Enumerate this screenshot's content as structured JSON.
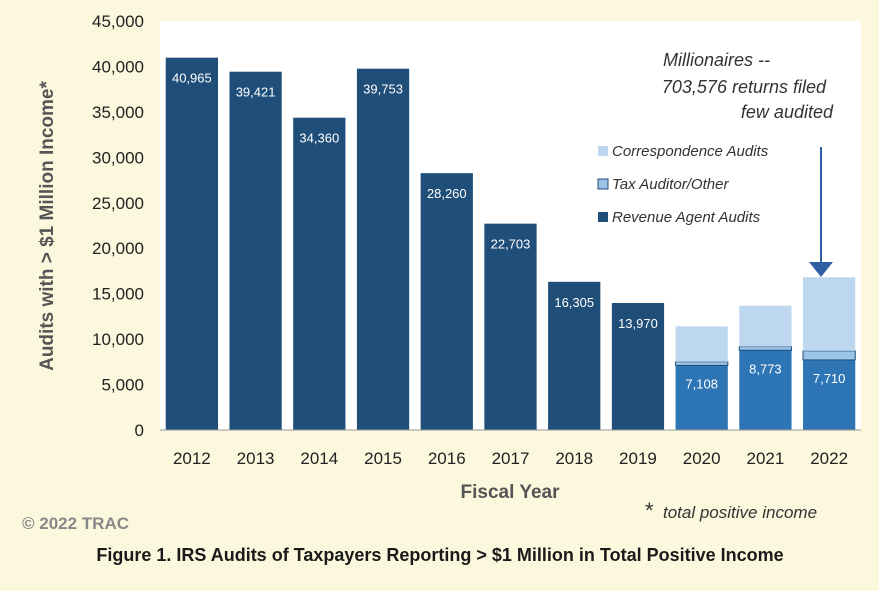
{
  "chart_data": {
    "type": "bar",
    "stacked": true,
    "categories": [
      "2012",
      "2013",
      "2014",
      "2015",
      "2016",
      "2017",
      "2018",
      "2019",
      "2020",
      "2021",
      "2022"
    ],
    "series": [
      {
        "name": "Revenue Agent Audits",
        "color": "#1f4e79",
        "color_alt": "#2e75b6",
        "values": [
          40965,
          39421,
          34360,
          39753,
          28260,
          22703,
          16305,
          13970,
          7108,
          8773,
          7710
        ]
      },
      {
        "name": "Tax Auditor/Other",
        "color": "#9dc3e6",
        "values": [
          0,
          0,
          0,
          0,
          0,
          0,
          0,
          0,
          400,
          400,
          1000
        ]
      },
      {
        "name": "Correspondence Audits",
        "color": "#bdd7ee",
        "values": [
          0,
          0,
          0,
          0,
          0,
          0,
          0,
          0,
          3900,
          4500,
          8100
        ]
      }
    ],
    "data_labels": [
      "40,965",
      "39,421",
      "34,360",
      "39,753",
      "28,260",
      "22,703",
      "16,305",
      "13,970",
      "7,108",
      "8,773",
      "7,710"
    ],
    "ylim": [
      0,
      45000
    ],
    "yticks": [
      0,
      5000,
      10000,
      15000,
      20000,
      25000,
      30000,
      35000,
      40000,
      45000
    ],
    "ytick_labels": [
      "0",
      "5,000",
      "10,000",
      "15,000",
      "20,000",
      "25,000",
      "30,000",
      "35,000",
      "40,000",
      "45,000"
    ],
    "ylabel": "Audits with > $1 Million Income*",
    "xlabel": "Fiscal Year",
    "grid": false,
    "legend_position": "right",
    "legend": [
      "Correspondence Audits",
      "Tax Auditor/Other",
      "Revenue Agent Audits"
    ],
    "annotation": [
      "Millionaires --",
      "703,576 returns filed",
      "few  audited"
    ],
    "footnote_mark": "*",
    "footnote": "total positive income",
    "copyright": "© 2022 TRAC",
    "caption": "Figure 1. IRS Audits of Taxpayers Reporting > $1 Million in Total Positive Income"
  }
}
